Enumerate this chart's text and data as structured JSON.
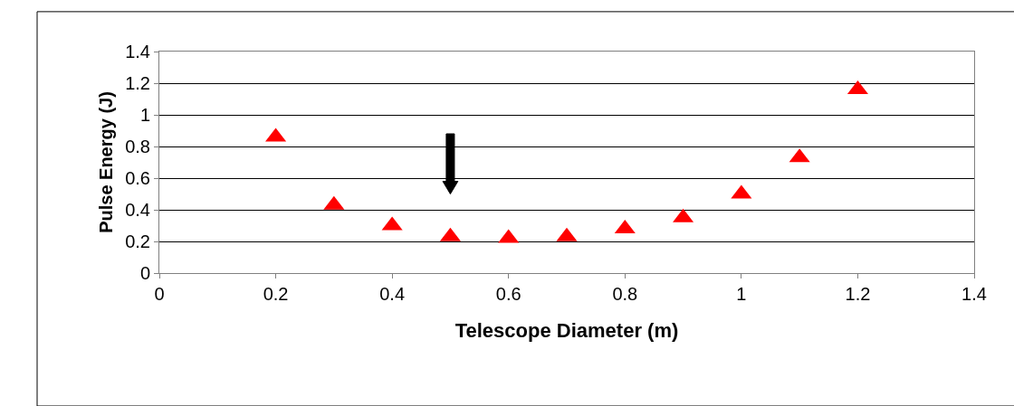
{
  "chart_data": {
    "type": "scatter",
    "xlabel": "Telescope Diameter (m)",
    "ylabel": "Pulse Energy (J)",
    "x": [
      0.2,
      0.3,
      0.4,
      0.5,
      0.6,
      0.7,
      0.8,
      0.9,
      1.0,
      1.1,
      1.2
    ],
    "series": [
      {
        "color": "#ff0000",
        "values": [
          0.86,
          0.43,
          0.3,
          0.23,
          0.22,
          0.23,
          0.28,
          0.35,
          0.5,
          0.73,
          1.16
        ]
      }
    ],
    "xlim": [
      0,
      1.4
    ],
    "xticks": [
      0,
      0.2,
      0.4,
      0.6,
      0.8,
      1,
      1.2,
      1.4
    ],
    "ylim": [
      0,
      1.4
    ],
    "yticks": [
      0,
      0.2,
      0.4,
      0.6,
      0.8,
      1,
      1.2,
      1.4
    ],
    "grid": "y",
    "marker": "triangle",
    "legend": false
  }
}
